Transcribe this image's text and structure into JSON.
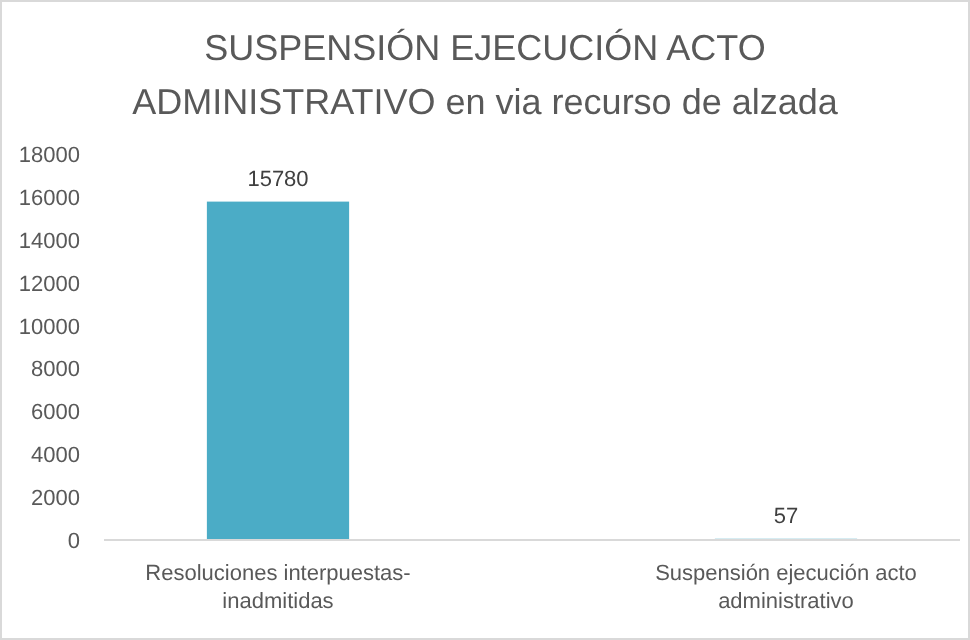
{
  "chart_data": {
    "type": "bar",
    "title": "SUSPENSIÓN EJECUCIÓN  ACTO\nADMINISTRATIVO  en via recurso de alzada",
    "categories": [
      "Resoluciones interpuestas-inadmitidas",
      "Suspensión ejecución acto administrativo"
    ],
    "values": [
      15780,
      57
    ],
    "color": "#4bacc6",
    "ylim": [
      0,
      18000
    ],
    "yticks": [
      0,
      2000,
      4000,
      6000,
      8000,
      10000,
      12000,
      14000,
      16000,
      18000
    ],
    "data_labels": true
  }
}
